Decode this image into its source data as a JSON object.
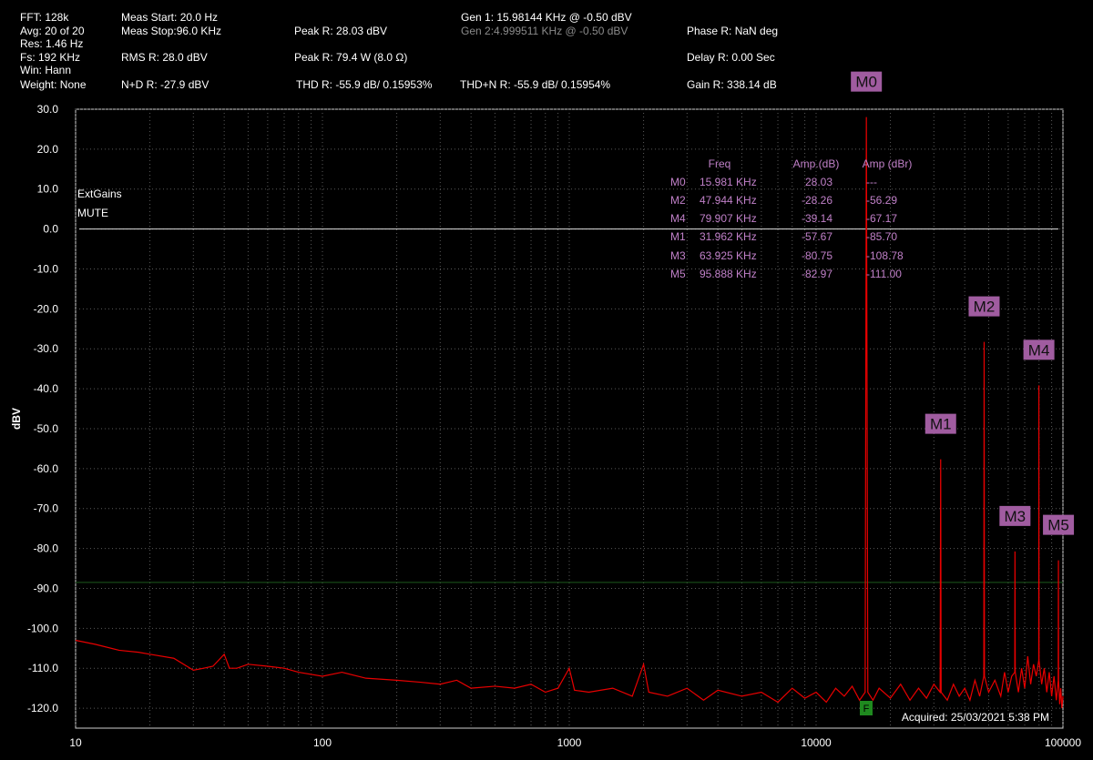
{
  "header": [
    "FFT: 128k",
    "Avg: 20 of 20",
    "Res: 1.46 Hz",
    "Fs: 192 KHz",
    "Win: Hann",
    "Weight: None",
    "Meas Start: 20.0 Hz",
    "Meas Stop:96.0 KHz",
    "RMS R: 28.0 dBV",
    "N+D R: -27.9 dBV",
    "Peak R: 28.03 dBV",
    "Peak R: 79.4 W (8.0 Ω)",
    "THD R: -55.9 dB/ 0.15953%",
    "Gen 1: 15.98144 KHz @ -0.50  dBV",
    "Gen 2:4.999511 KHz @ -0.50  dBV",
    "THD+N R: -55.9 dB/ 0.15954%",
    "Phase R: NaN deg",
    "Delay R: 0.00 Sec",
    "Gain R: 338.14 dB"
  ],
  "notes": [
    "ExtGains",
    "MUTE"
  ],
  "acquired": "Acquired: 25/03/2021  5:38 PM",
  "flag": "F",
  "marker_table": {
    "columns": [
      "Freq",
      "Amp.(dB)",
      "Amp (dBr)"
    ],
    "rows": [
      [
        "M0",
        "15.981 KHz",
        "28.03",
        "---"
      ],
      [
        "M2",
        "47.944 KHz",
        "-28.26",
        "-56.29"
      ],
      [
        "M4",
        "79.907 KHz",
        "-39.14",
        "-67.17"
      ],
      [
        "M1",
        "31.962 KHz",
        "-57.67",
        "-85.70"
      ],
      [
        "M3",
        "63.925 KHz",
        "-80.75",
        "-108.78"
      ],
      [
        "M5",
        "95.888 KHz",
        "-82.97",
        "-111.00"
      ]
    ]
  },
  "chart_data": {
    "type": "line",
    "ylabel": "dBV",
    "log_x": true,
    "grid": true,
    "xlim": [
      10,
      100000
    ],
    "ylim": [
      -125,
      30
    ],
    "xticks": [
      10,
      100,
      1000,
      10000,
      100000
    ],
    "xminor": [
      20,
      30,
      40,
      50,
      60,
      70,
      80,
      90,
      200,
      300,
      400,
      500,
      600,
      700,
      800,
      900,
      2000,
      3000,
      4000,
      5000,
      6000,
      7000,
      8000,
      9000,
      20000,
      30000,
      40000,
      50000,
      60000,
      70000,
      80000,
      90000
    ],
    "yticks": [
      {
        "value": 30,
        "label": "30.0"
      },
      {
        "value": 20,
        "label": "20.0"
      },
      {
        "value": 10,
        "label": "10.0"
      },
      {
        "value": 0,
        "label": "0.0"
      },
      {
        "value": -10,
        "label": "-10.0"
      },
      {
        "value": -20,
        "label": "-20.0"
      },
      {
        "value": -30,
        "label": "-30.0"
      },
      {
        "value": -40,
        "label": "-40.0"
      },
      {
        "value": -50,
        "label": "-50.0"
      },
      {
        "value": -60,
        "label": "-60.0"
      },
      {
        "value": -70,
        "label": "-70.0"
      },
      {
        "value": -80,
        "label": "-80.0"
      },
      {
        "value": -90,
        "label": "-90.0"
      },
      {
        "value": -100,
        "label": "-100.0"
      },
      {
        "value": -110,
        "label": "-110.0"
      },
      {
        "value": -120,
        "label": "-120.0"
      }
    ],
    "reference_line": 0,
    "threshold": -88.5,
    "threshold_color": "#1d5a1d",
    "series": [
      {
        "color": "#e80000",
        "x": [
          10,
          12,
          15,
          18,
          20,
          25,
          30,
          33,
          36,
          40,
          42,
          45,
          50,
          60,
          70,
          80,
          100,
          120,
          150,
          200,
          250,
          300,
          350,
          400,
          500,
          600,
          700,
          800,
          900,
          1000,
          1050,
          1200,
          1500,
          1800,
          2000,
          2100,
          2500,
          3000,
          3500,
          4000,
          5000,
          6000,
          7000,
          8000,
          9000,
          10000,
          11000,
          12000,
          13000,
          14000,
          15000,
          15800,
          15981,
          16200,
          17000,
          18000,
          20000,
          22000,
          24000,
          26000,
          28000,
          30000,
          31800,
          31962,
          32100,
          34000,
          36000,
          38000,
          40000,
          42000,
          44000,
          46000,
          47800,
          47944,
          48100,
          50000,
          53000,
          56000,
          58000,
          60000,
          62000,
          63800,
          63925,
          64100,
          66000,
          68000,
          70000,
          72000,
          74000,
          76000,
          78000,
          79800,
          79907,
          80000,
          82000,
          84000,
          86000,
          88000,
          90000,
          92000,
          94000,
          95700,
          95888,
          96000,
          97000,
          98000,
          99000,
          100000
        ],
        "values": [
          -103,
          -104,
          -105.5,
          -106,
          -106.5,
          -107.5,
          -110.5,
          -110,
          -109.5,
          -106.5,
          -110,
          -110,
          -109,
          -109.5,
          -110,
          -111,
          -112,
          -111,
          -112.5,
          -113,
          -113.5,
          -114,
          -113,
          -115,
          -114.5,
          -115,
          -114,
          -116,
          -115,
          -110,
          -115.5,
          -116,
          -115,
          -117,
          -109,
          -116,
          -117,
          -115,
          -118,
          -115.5,
          -117,
          -116,
          -118.5,
          -115,
          -117.5,
          -116,
          -118.5,
          -115,
          -117,
          -114.5,
          -118,
          -116,
          28.03,
          -116,
          -118,
          -115,
          -117.5,
          -114,
          -118,
          -115,
          -117.5,
          -114,
          -116,
          -57.67,
          -116,
          -118,
          -114,
          -117,
          -115,
          -118,
          -113,
          -117,
          -112,
          -28.26,
          -112,
          -116,
          -113,
          -117,
          -111,
          -116,
          -112,
          -111,
          -80.75,
          -111,
          -116,
          -110,
          -115,
          -107,
          -114,
          -109,
          -112,
          -108,
          -39.14,
          -108,
          -114,
          -110,
          -116,
          -111,
          -117,
          -112,
          -118,
          -113,
          -82.97,
          -113,
          -119,
          -115,
          -120,
          -117
        ]
      }
    ],
    "markers": [
      {
        "label": "M0",
        "x": 15981,
        "value": 28.03
      },
      {
        "label": "M1",
        "x": 31962,
        "value": -57.67
      },
      {
        "label": "M2",
        "x": 47944,
        "value": -28.26
      },
      {
        "label": "M3",
        "x": 63925,
        "value": -80.75
      },
      {
        "label": "M4",
        "x": 79907,
        "value": -39.14
      },
      {
        "label": "M5",
        "x": 95888,
        "value": -82.97
      }
    ],
    "marker_color": "#a05ca0"
  }
}
